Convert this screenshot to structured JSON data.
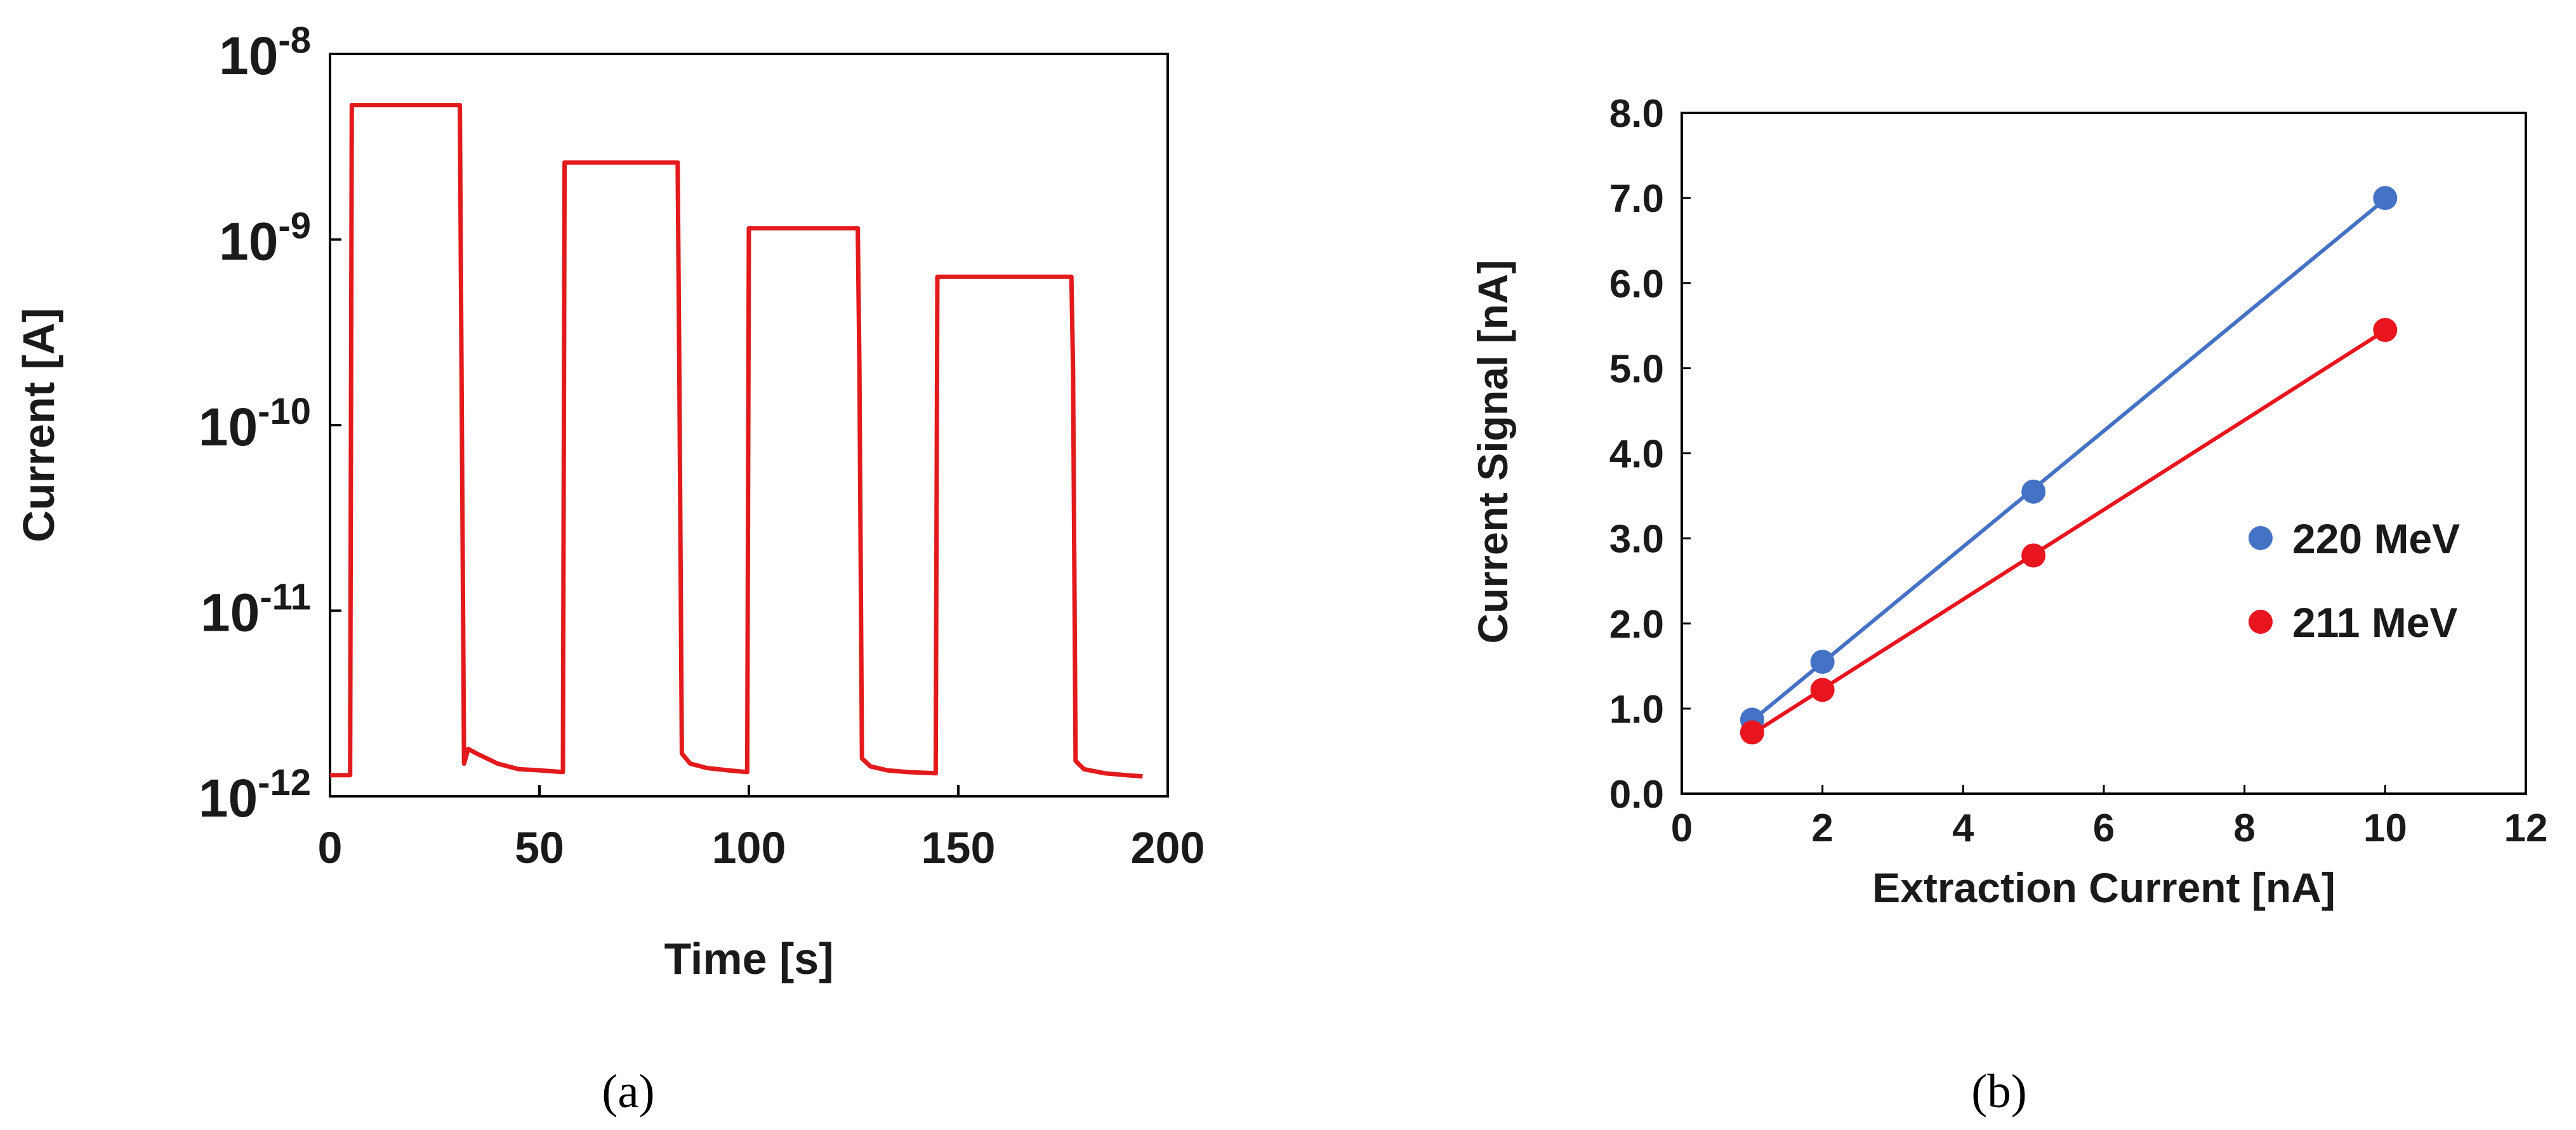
{
  "colors": {
    "trace": "#e31a1c",
    "series_220": "#4472c4",
    "series_211": "#e8141e",
    "axis": "#000000",
    "text": "#1a1a1a"
  },
  "captions": {
    "a": "(a)",
    "b": "(b)"
  },
  "chart_data": [
    {
      "id": "a",
      "type": "line",
      "title": "",
      "xlabel": "Time [s]",
      "ylabel": "Current [A]",
      "yscale": "log",
      "xlim": [
        0,
        200
      ],
      "ylim": [
        1e-12,
        1e-08
      ],
      "xticks": [
        0,
        50,
        100,
        150,
        200
      ],
      "xtick_labels": [
        "0",
        "50",
        "100",
        "150",
        "200"
      ],
      "yticks": [
        {
          "value": 1e-12,
          "base": "10",
          "exp": "-12"
        },
        {
          "value": 1e-11,
          "base": "10",
          "exp": "-11"
        },
        {
          "value": 1e-10,
          "base": "10",
          "exp": "-10"
        },
        {
          "value": 1e-09,
          "base": "10",
          "exp": "-9"
        },
        {
          "value": 1e-08,
          "base": "10",
          "exp": "-8"
        }
      ],
      "baseline_current": 1.3e-12,
      "pulses": [
        {
          "start": 5,
          "end": 31,
          "level": 5.3e-09
        },
        {
          "start": 56,
          "end": 83,
          "level": 2.6e-09
        },
        {
          "start": 100,
          "end": 126,
          "level": 1.15e-09
        },
        {
          "start": 145,
          "end": 177,
          "level": 6.3e-10
        }
      ],
      "series": [
        {
          "name": "Current",
          "x": [
            0,
            4.8,
            5.2,
            31,
            31.4,
            32,
            33,
            35,
            40,
            45,
            50,
            55.6,
            56,
            83,
            83.4,
            84,
            86,
            90,
            95,
            99.6,
            100,
            126,
            126.4,
            127,
            129,
            133,
            138,
            144.6,
            145,
            177,
            177.4,
            178,
            180,
            185,
            190,
            194
          ],
          "y": [
            1.3e-12,
            1.3e-12,
            5.3e-09,
            5.3e-09,
            2e-10,
            1.5e-12,
            1.8e-12,
            1.7e-12,
            1.5e-12,
            1.4e-12,
            1.38e-12,
            1.35e-12,
            2.6e-09,
            2.6e-09,
            2e-10,
            1.7e-12,
            1.5e-12,
            1.42e-12,
            1.38e-12,
            1.35e-12,
            1.15e-09,
            1.15e-09,
            2e-10,
            1.6e-12,
            1.45e-12,
            1.38e-12,
            1.35e-12,
            1.33e-12,
            6.3e-10,
            6.3e-10,
            2e-10,
            1.55e-12,
            1.4e-12,
            1.33e-12,
            1.3e-12,
            1.28e-12
          ]
        }
      ]
    },
    {
      "id": "b",
      "type": "scatter",
      "title": "",
      "xlabel": "Extraction Current [nA]",
      "ylabel": "Current Signal [nA]",
      "xlim": [
        0,
        12
      ],
      "ylim": [
        0,
        8
      ],
      "xticks": [
        0,
        2,
        4,
        6,
        8,
        10,
        12
      ],
      "xtick_labels": [
        "0",
        "2",
        "4",
        "6",
        "8",
        "10",
        "12"
      ],
      "yticks": [
        0,
        1,
        2,
        3,
        4,
        5,
        6,
        7,
        8
      ],
      "ytick_labels": [
        "0.0",
        "1.0",
        "2.0",
        "3.0",
        "4.0",
        "5.0",
        "6.0",
        "7.0",
        "8.0"
      ],
      "legend_position": "right",
      "series": [
        {
          "name": "220 MeV",
          "x": [
            1,
            2,
            5,
            10
          ],
          "y": [
            0.87,
            1.55,
            3.55,
            7.0
          ],
          "trendline": "linear",
          "color_key": "series_220"
        },
        {
          "name": "211 MeV",
          "x": [
            1,
            2,
            5,
            10
          ],
          "y": [
            0.72,
            1.22,
            2.8,
            5.45
          ],
          "trendline": "linear",
          "color_key": "series_211"
        }
      ]
    }
  ]
}
